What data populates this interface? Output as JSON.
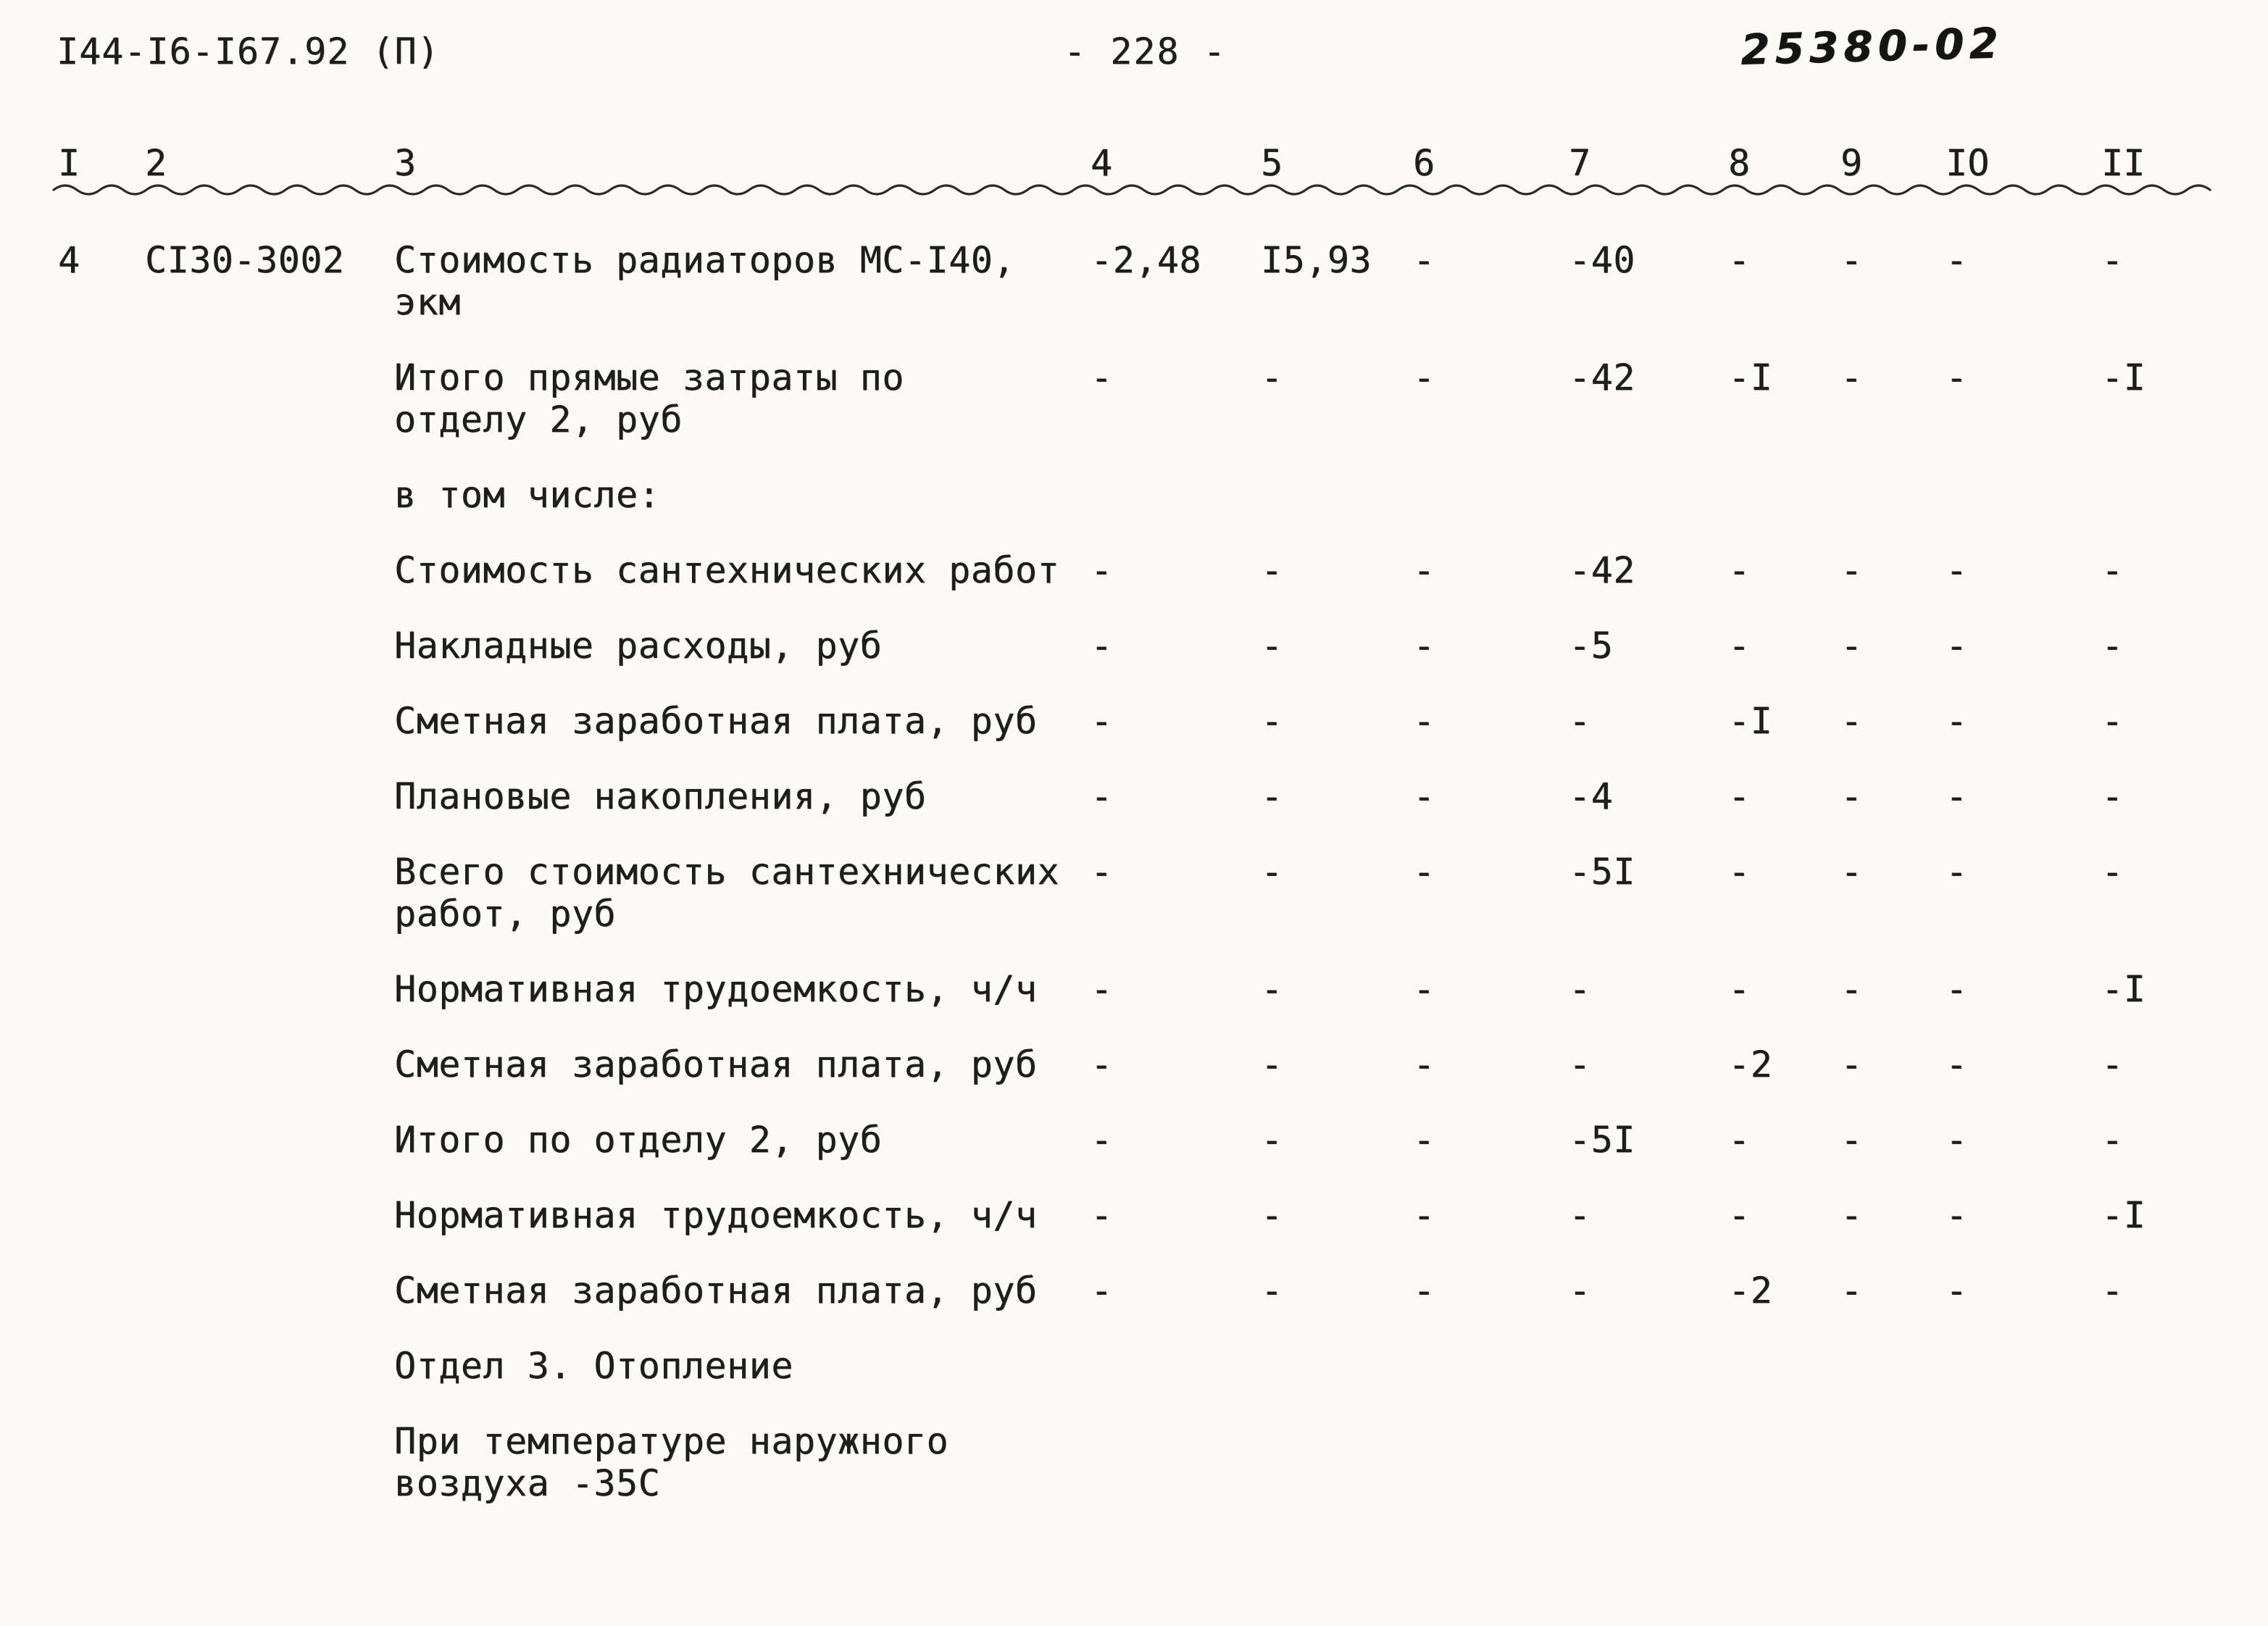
{
  "page": {
    "doc_number": "I44-I6-I67.92 (П)",
    "page_number": "- 228 -",
    "stamp": "25380-02",
    "paper_color": "#fbfaf6",
    "ink_color": "#1d1d1d"
  },
  "table": {
    "columns": [
      "I",
      "2",
      "3",
      "4",
      "5",
      "6",
      "7",
      "8",
      "9",
      "IO",
      "II"
    ],
    "rows": [
      {
        "cells": [
          "4",
          "СI30-3002",
          "Стоимость радиаторов МС-I40,\nэкм",
          "-2,48",
          "I5,93",
          "-",
          "-40",
          "-",
          "-",
          "-",
          "-"
        ]
      },
      {
        "cells": [
          "",
          "",
          "Итого прямые затраты по\nотделу 2, руб",
          "-",
          "-",
          "-",
          "-42",
          "-I",
          "-",
          "-",
          "-I"
        ]
      },
      {
        "cells": [
          "",
          "",
          "в том числе:",
          "",
          "",
          "",
          "",
          "",
          "",
          "",
          ""
        ]
      },
      {
        "cells": [
          "",
          "",
          "Стоимость сантехнических работ",
          "-",
          "-",
          "-",
          "-42",
          "-",
          "-",
          "-",
          "-"
        ]
      },
      {
        "cells": [
          "",
          "",
          "Накладные расходы, руб",
          "-",
          "-",
          "-",
          "-5",
          "-",
          "-",
          "-",
          "-"
        ]
      },
      {
        "cells": [
          "",
          "",
          "Сметная заработная плата, руб",
          "-",
          "-",
          "-",
          "-",
          "-I",
          "-",
          "-",
          "-"
        ]
      },
      {
        "cells": [
          "",
          "",
          "Плановые накопления, руб",
          "-",
          "-",
          "-",
          "-4",
          "-",
          "-",
          "-",
          "-"
        ]
      },
      {
        "cells": [
          "",
          "",
          "Всего стоимость сантехнических\nработ, руб",
          "-",
          "-",
          "-",
          "-5I",
          "-",
          "-",
          "-",
          "-"
        ]
      },
      {
        "cells": [
          "",
          "",
          "Нормативная трудоемкость, ч/ч",
          "-",
          "-",
          "-",
          "-",
          "-",
          "-",
          "-",
          "-I"
        ]
      },
      {
        "cells": [
          "",
          "",
          "Сметная заработная плата, руб",
          "-",
          "-",
          "-",
          "-",
          "-2",
          "-",
          "-",
          "-"
        ]
      },
      {
        "cells": [
          "",
          "",
          "Итого по отделу 2, руб",
          "-",
          "-",
          "-",
          "-5I",
          "-",
          "-",
          "-",
          "-"
        ]
      },
      {
        "cells": [
          "",
          "",
          "Нормативная трудоемкость, ч/ч",
          "-",
          "-",
          "-",
          "-",
          "-",
          "-",
          "-",
          "-I"
        ]
      },
      {
        "cells": [
          "",
          "",
          "Сметная заработная плата, руб",
          "-",
          "-",
          "-",
          "-",
          "-2",
          "-",
          "-",
          "-"
        ]
      },
      {
        "cells": [
          "",
          "",
          "Отдел 3. Отопление",
          "",
          "",
          "",
          "",
          "",
          "",
          "",
          ""
        ]
      },
      {
        "cells": [
          "",
          "",
          "При температуре наружного\nвоздуха -35С",
          "",
          "",
          "",
          "",
          "",
          "",
          "",
          ""
        ]
      }
    ]
  }
}
